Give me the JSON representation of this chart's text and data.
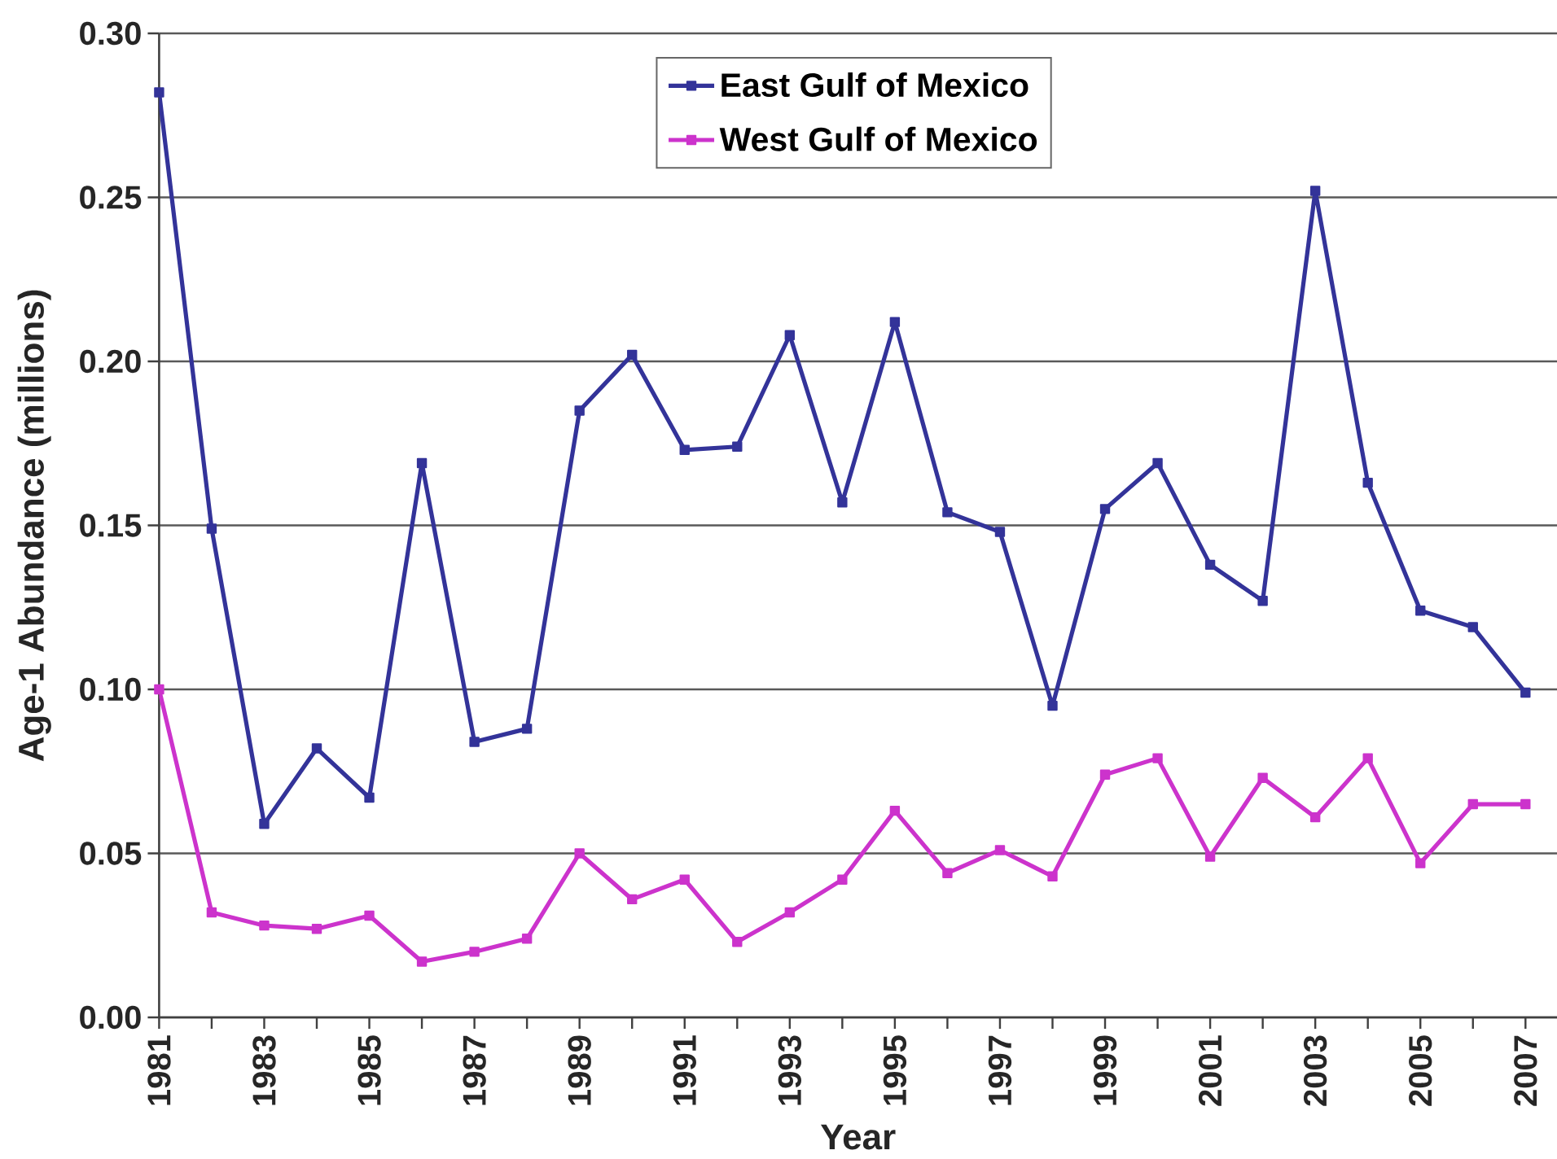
{
  "chart_data": {
    "type": "line",
    "xlabel": "Year",
    "ylabel": "Age-1 Abundance (millions)",
    "x": [
      1981,
      1982,
      1983,
      1984,
      1985,
      1986,
      1987,
      1988,
      1989,
      1990,
      1991,
      1992,
      1993,
      1994,
      1995,
      1996,
      1997,
      1998,
      1999,
      2000,
      2001,
      2002,
      2003,
      2004,
      2005,
      2006,
      2007
    ],
    "series": [
      {
        "name": "East Gulf of Mexico",
        "color": "#333399",
        "values": [
          0.282,
          0.149,
          0.059,
          0.082,
          0.067,
          0.169,
          0.084,
          0.088,
          0.185,
          0.202,
          0.173,
          0.174,
          0.208,
          0.157,
          0.212,
          0.154,
          0.148,
          0.095,
          0.155,
          0.169,
          0.138,
          0.127,
          0.252,
          0.163,
          0.124,
          0.119,
          0.099
        ]
      },
      {
        "name": "West Gulf of Mexico",
        "color": "#cc33cc",
        "values": [
          0.1,
          0.032,
          0.028,
          0.027,
          0.031,
          0.017,
          0.02,
          0.024,
          0.05,
          0.036,
          0.042,
          0.023,
          0.032,
          0.042,
          0.063,
          0.044,
          0.051,
          0.043,
          0.074,
          0.079,
          0.049,
          0.073,
          0.061,
          0.079,
          0.047,
          0.065,
          0.065
        ]
      }
    ],
    "xlim": [
      1981,
      2007.6
    ],
    "ylim": [
      0,
      0.3
    ],
    "xticks": [
      1981,
      {
        "value": 1982,
        "label": null
      },
      1983,
      {
        "value": 1984,
        "label": null
      },
      1985,
      {
        "value": 1986,
        "label": null
      },
      1987,
      {
        "value": 1988,
        "label": null
      },
      1989,
      {
        "value": 1990,
        "label": null
      },
      1991,
      {
        "value": 1992,
        "label": null
      },
      1993,
      {
        "value": 1994,
        "label": null
      },
      1995,
      {
        "value": 1996,
        "label": null
      },
      1997,
      {
        "value": 1998,
        "label": null
      },
      1999,
      {
        "value": 2000,
        "label": null
      },
      2001,
      {
        "value": 2002,
        "label": null
      },
      2003,
      {
        "value": 2004,
        "label": null
      },
      2005,
      {
        "value": 2006,
        "label": null
      },
      2007
    ],
    "yticks": [
      {
        "value": 0,
        "label": "0.00"
      },
      {
        "value": 0.05,
        "label": "0.05"
      },
      {
        "value": 0.1,
        "label": "0.10"
      },
      {
        "value": 0.15,
        "label": "0.15"
      },
      {
        "value": 0.2,
        "label": "0.20"
      },
      {
        "value": 0.25,
        "label": "0.25"
      },
      {
        "value": 0.3,
        "label": "0.30"
      }
    ],
    "grid": "y",
    "legend": "top",
    "marker": "square",
    "line_style": "solid"
  }
}
